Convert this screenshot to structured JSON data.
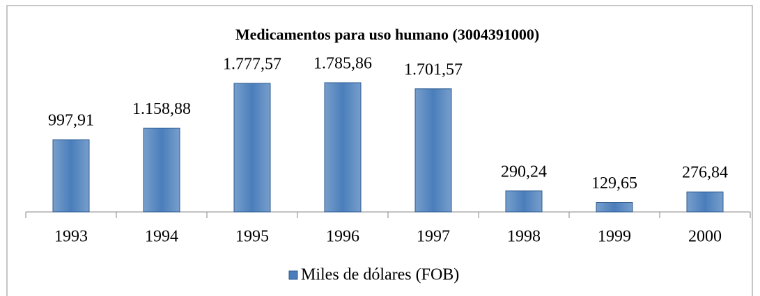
{
  "chart_data": {
    "type": "bar",
    "title": "Medicamentos para uso humano (3004391000)",
    "categories": [
      "1993",
      "1994",
      "1995",
      "1996",
      "1997",
      "1998",
      "1999",
      "2000"
    ],
    "series": [
      {
        "name": "Miles de dólares (FOB)",
        "color": "#4a7ebb",
        "values": [
          997.91,
          1158.88,
          1777.57,
          1785.86,
          1701.57,
          290.24,
          129.65,
          276.84
        ],
        "value_labels": [
          "997,91",
          "1.158,88",
          "1.777,57",
          "1.785,86",
          "1.701,57",
          "290,24",
          "129,65",
          "276,84"
        ]
      }
    ],
    "legend": "bottom"
  }
}
